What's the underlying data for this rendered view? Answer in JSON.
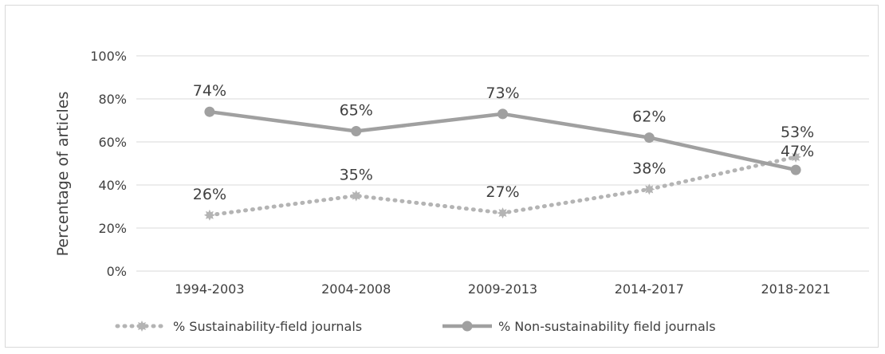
{
  "chart_data": {
    "type": "line",
    "title": "",
    "xlabel": "",
    "ylabel": "Percentage of articles",
    "categories": [
      "1994-2003",
      "2004-2008",
      "2009-2013",
      "2014-2017",
      "2018-2021"
    ],
    "ylim": [
      0,
      100
    ],
    "yticks": [
      0,
      20,
      40,
      60,
      80,
      100
    ],
    "ytick_labels": [
      "0%",
      "20%",
      "40%",
      "60%",
      "80%",
      "100%"
    ],
    "grid": true,
    "legend_position": "bottom",
    "series": [
      {
        "name": "% Sustainability-field journals",
        "values": [
          26,
          35,
          27,
          38,
          53
        ],
        "labels": [
          "26%",
          "35%",
          "27%",
          "38%",
          "53%"
        ],
        "color": "#b4b4b4",
        "line_style": "dotted",
        "marker": "star"
      },
      {
        "name": "% Non-sustainability field journals",
        "values": [
          74,
          65,
          73,
          62,
          47
        ],
        "labels": [
          "74%",
          "65%",
          "73%",
          "62%",
          "47%"
        ],
        "color": "#a0a0a0",
        "line_style": "solid",
        "marker": "circle"
      }
    ]
  }
}
